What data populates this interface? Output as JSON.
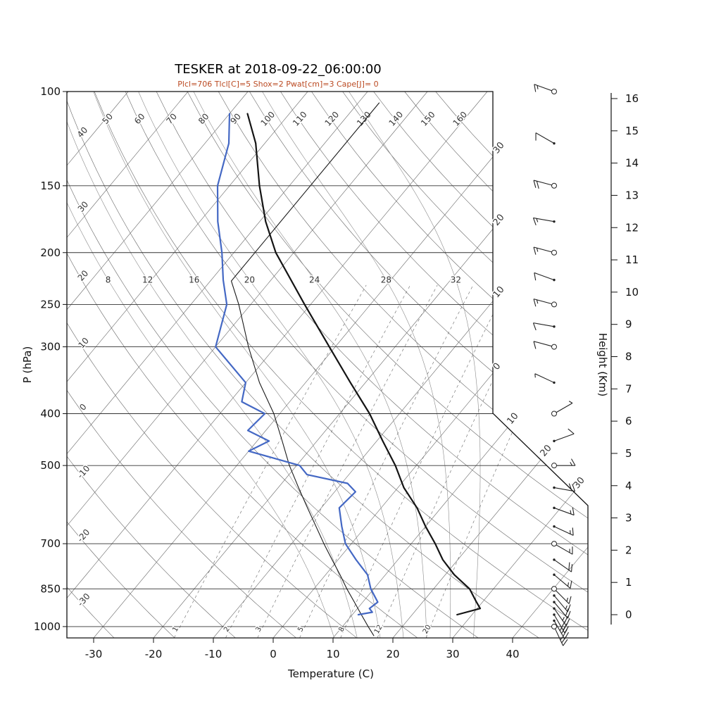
{
  "chart_data": {
    "type": "skewt-logp-sounding",
    "title": "TESKER at 2018-09-22_06:00:00",
    "subtitle": "Plcl=706 Tlcl[C]=5 Shox=2 Pwat[cm]=3 Cape[J]= 0",
    "station": "TESKER",
    "datetime": "2018-09-22_06:00:00",
    "parameters": {
      "Plcl": 706,
      "Tlcl_C": 5,
      "Shox": 2,
      "Pwat_cm": 3,
      "Cape_J": 0
    },
    "axes": {
      "xlabel": "Temperature (C)",
      "ylabel_left": "P (hPa)",
      "ylabel_right": "Height (Km)",
      "pressure_ticks_hPa": [
        100,
        150,
        200,
        250,
        300,
        400,
        500,
        700,
        850,
        1000
      ],
      "temperature_ticks_C": [
        -30,
        -20,
        -10,
        0,
        10,
        20,
        30,
        40
      ],
      "height_ticks_km": [
        0,
        1,
        2,
        3,
        4,
        5,
        6,
        7,
        8,
        9,
        10,
        11,
        12,
        13,
        14,
        15,
        16
      ],
      "pressure_range_hPa": [
        100,
        1050
      ],
      "grid": true
    },
    "background": {
      "isotherm_step_C": 10,
      "dry_adiabat_labels_top": [
        50,
        60,
        70,
        80,
        90,
        100,
        110,
        120,
        130,
        140,
        150,
        160
      ],
      "dry_adiabat_labels_left": [
        40,
        30,
        20,
        10,
        0,
        -10,
        -20,
        -30
      ],
      "isotherm_edge_label_values": [
        -30,
        -20,
        -10,
        0,
        10,
        20,
        30
      ],
      "isotherm_edge_labels": [
        "30",
        "20",
        "10",
        "0",
        "10",
        "20",
        "30"
      ],
      "moist_adiabat_labels": [
        8,
        12,
        16,
        20,
        24,
        28,
        32
      ],
      "mixing_ratio_labels_g_kg": [
        1,
        2,
        3,
        5,
        8,
        12,
        20
      ]
    },
    "series": {
      "temperature": [
        [
          950,
          27.5
        ],
        [
          925,
          30.5
        ],
        [
          900,
          29
        ],
        [
          850,
          26
        ],
        [
          800,
          21.5
        ],
        [
          750,
          17.5
        ],
        [
          700,
          14
        ],
        [
          650,
          10
        ],
        [
          600,
          6
        ],
        [
          550,
          1
        ],
        [
          500,
          -3.5
        ],
        [
          450,
          -9
        ],
        [
          400,
          -15
        ],
        [
          350,
          -22.5
        ],
        [
          300,
          -31
        ],
        [
          250,
          -41
        ],
        [
          200,
          -53
        ],
        [
          175,
          -59
        ],
        [
          150,
          -65
        ],
        [
          125,
          -71.5
        ],
        [
          110,
          -77
        ]
      ],
      "dewpoint": [
        [
          950,
          11
        ],
        [
          940,
          13
        ],
        [
          925,
          12
        ],
        [
          900,
          12.5
        ],
        [
          850,
          9.5
        ],
        [
          800,
          7
        ],
        [
          750,
          3
        ],
        [
          700,
          -1
        ],
        [
          650,
          -4
        ],
        [
          600,
          -7
        ],
        [
          560,
          -6.5
        ],
        [
          540,
          -9
        ],
        [
          520,
          -17
        ],
        [
          500,
          -19.5
        ],
        [
          470,
          -30
        ],
        [
          450,
          -28
        ],
        [
          430,
          -33
        ],
        [
          400,
          -32.5
        ],
        [
          380,
          -38
        ],
        [
          350,
          -40
        ],
        [
          300,
          -50
        ],
        [
          250,
          -54
        ],
        [
          225,
          -58
        ],
        [
          200,
          -62
        ],
        [
          175,
          -67
        ],
        [
          150,
          -72
        ],
        [
          125,
          -76
        ],
        [
          110,
          -80
        ]
      ],
      "reference": [
        [
          105,
          -56.5
        ],
        [
          150,
          -56.5
        ],
        [
          200,
          -56.5
        ],
        [
          226,
          -56.5
        ],
        [
          250,
          -52
        ],
        [
          300,
          -44.5
        ],
        [
          350,
          -37.7
        ],
        [
          400,
          -31
        ],
        [
          450,
          -25.8
        ],
        [
          500,
          -21.2
        ],
        [
          550,
          -16.6
        ],
        [
          600,
          -12.3
        ],
        [
          650,
          -8.3
        ],
        [
          700,
          -4.6
        ],
        [
          750,
          -1
        ],
        [
          800,
          2.4
        ],
        [
          850,
          5.5
        ],
        [
          900,
          8.6
        ],
        [
          950,
          11.5
        ],
        [
          1000,
          14.3
        ],
        [
          1040,
          16.5
        ]
      ]
    },
    "wind_barbs": [
      [
        100,
        290,
        15
      ],
      [
        125,
        300,
        10
      ],
      [
        150,
        285,
        20
      ],
      [
        175,
        280,
        15
      ],
      [
        200,
        285,
        15
      ],
      [
        225,
        290,
        10
      ],
      [
        250,
        285,
        15
      ],
      [
        275,
        280,
        10
      ],
      [
        300,
        285,
        10
      ],
      [
        350,
        295,
        5
      ],
      [
        400,
        60,
        5
      ],
      [
        450,
        70,
        10
      ],
      [
        500,
        90,
        15
      ],
      [
        550,
        100,
        20
      ],
      [
        600,
        110,
        15
      ],
      [
        650,
        115,
        15
      ],
      [
        700,
        120,
        15
      ],
      [
        750,
        125,
        20
      ],
      [
        800,
        130,
        15
      ],
      [
        850,
        135,
        15
      ],
      [
        875,
        140,
        15
      ],
      [
        900,
        140,
        20
      ],
      [
        925,
        145,
        25
      ],
      [
        950,
        150,
        30
      ],
      [
        975,
        150,
        35
      ],
      [
        1000,
        155,
        25
      ]
    ],
    "wind_speed_unit": "kt",
    "colors": {
      "temperature": "#141414",
      "dewpoint": "#4468c4",
      "reference": "#1a1a1a",
      "grid": "#666666",
      "pressure_line": "#333333",
      "border": "#111111",
      "subtitle": "#bb4a22",
      "barb": "#222222"
    }
  }
}
